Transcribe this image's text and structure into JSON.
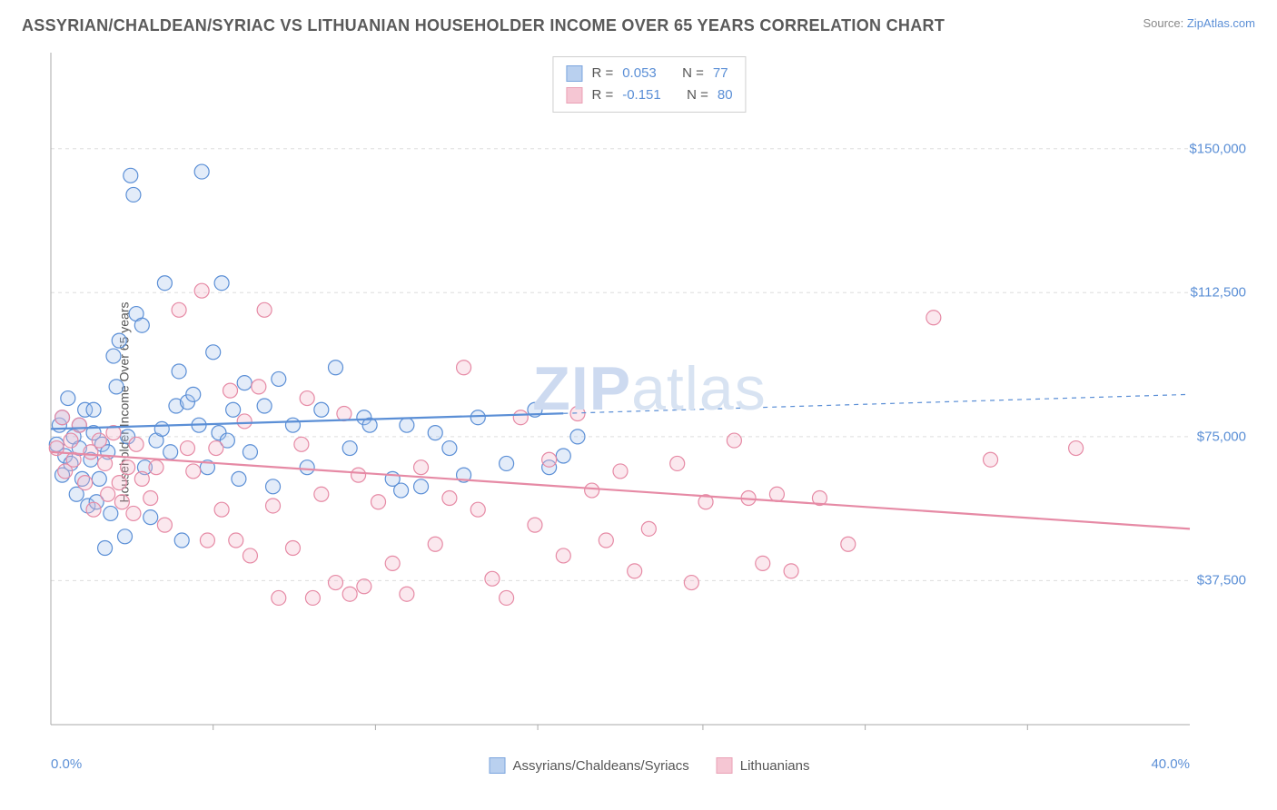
{
  "title": "ASSYRIAN/CHALDEAN/SYRIAC VS LITHUANIAN HOUSEHOLDER INCOME OVER 65 YEARS CORRELATION CHART",
  "source_prefix": "Source: ",
  "source_link": "ZipAtlas.com",
  "ylabel": "Householder Income Over 65 years",
  "watermark_a": "ZIP",
  "watermark_b": "atlas",
  "chart": {
    "type": "scatter",
    "background_color": "#ffffff",
    "grid_color": "#dddddd",
    "axis_color": "#aaaaaa",
    "text_color": "#555555",
    "tick_color": "#5b8fd6",
    "title_fontsize": 18,
    "label_fontsize": 14,
    "tick_fontsize": 15,
    "xlim": [
      0,
      40
    ],
    "ylim": [
      0,
      175000
    ],
    "y_ticks": [
      37500,
      75000,
      112500,
      150000
    ],
    "y_tick_labels": [
      "$37,500",
      "$75,000",
      "$112,500",
      "$150,000"
    ],
    "x_ticks": [
      0,
      40
    ],
    "x_tick_labels": [
      "0.0%",
      "40.0%"
    ],
    "x_minor_ticks": [
      5.7,
      11.4,
      17.1,
      22.9,
      28.6,
      34.3
    ],
    "marker_radius": 8,
    "marker_fill_opacity": 0.32,
    "marker_stroke_width": 1.2,
    "line_width": 2.2,
    "series": [
      {
        "name": "Assyrians/Chaldeans/Syriacs",
        "color_stroke": "#5b8fd6",
        "color_fill": "#a8c5ec",
        "R": "0.053",
        "N": "77",
        "trend": {
          "y_at_xmin": 77000,
          "y_at_xmax": 86000,
          "solid_until_x": 18
        },
        "points": [
          [
            0.2,
            73000
          ],
          [
            0.3,
            78000
          ],
          [
            0.4,
            65000
          ],
          [
            0.4,
            80000
          ],
          [
            0.5,
            70000
          ],
          [
            0.6,
            85000
          ],
          [
            0.7,
            68000
          ],
          [
            0.8,
            75000
          ],
          [
            0.9,
            60000
          ],
          [
            1.0,
            78000
          ],
          [
            1.0,
            72000
          ],
          [
            1.1,
            64000
          ],
          [
            1.2,
            82000
          ],
          [
            1.3,
            57000
          ],
          [
            1.4,
            69000
          ],
          [
            1.5,
            76000
          ],
          [
            1.5,
            82000
          ],
          [
            1.6,
            58000
          ],
          [
            1.7,
            64000
          ],
          [
            1.8,
            73000
          ],
          [
            1.9,
            46000
          ],
          [
            2.0,
            71000
          ],
          [
            2.1,
            55000
          ],
          [
            2.2,
            96000
          ],
          [
            2.3,
            88000
          ],
          [
            2.4,
            100000
          ],
          [
            2.6,
            49000
          ],
          [
            2.7,
            75000
          ],
          [
            2.8,
            143000
          ],
          [
            2.9,
            138000
          ],
          [
            3.0,
            107000
          ],
          [
            3.2,
            104000
          ],
          [
            3.3,
            67000
          ],
          [
            3.5,
            54000
          ],
          [
            3.7,
            74000
          ],
          [
            3.9,
            77000
          ],
          [
            4.0,
            115000
          ],
          [
            4.2,
            71000
          ],
          [
            4.4,
            83000
          ],
          [
            4.5,
            92000
          ],
          [
            4.6,
            48000
          ],
          [
            4.8,
            84000
          ],
          [
            5.0,
            86000
          ],
          [
            5.2,
            78000
          ],
          [
            5.3,
            144000
          ],
          [
            5.5,
            67000
          ],
          [
            5.7,
            97000
          ],
          [
            5.9,
            76000
          ],
          [
            6.0,
            115000
          ],
          [
            6.2,
            74000
          ],
          [
            6.4,
            82000
          ],
          [
            6.6,
            64000
          ],
          [
            6.8,
            89000
          ],
          [
            7.0,
            71000
          ],
          [
            7.5,
            83000
          ],
          [
            7.8,
            62000
          ],
          [
            8.0,
            90000
          ],
          [
            8.5,
            78000
          ],
          [
            9.0,
            67000
          ],
          [
            9.5,
            82000
          ],
          [
            10.0,
            93000
          ],
          [
            10.5,
            72000
          ],
          [
            11.0,
            80000
          ],
          [
            11.2,
            78000
          ],
          [
            12.0,
            64000
          ],
          [
            12.3,
            61000
          ],
          [
            12.5,
            78000
          ],
          [
            13.0,
            62000
          ],
          [
            13.5,
            76000
          ],
          [
            14.0,
            72000
          ],
          [
            14.5,
            65000
          ],
          [
            15.0,
            80000
          ],
          [
            16.0,
            68000
          ],
          [
            17.0,
            82000
          ],
          [
            17.5,
            67000
          ],
          [
            18.0,
            70000
          ],
          [
            18.5,
            75000
          ]
        ]
      },
      {
        "name": "Lithuanians",
        "color_stroke": "#e68aa5",
        "color_fill": "#f3b8c9",
        "R": "-0.151",
        "N": "80",
        "trend": {
          "y_at_xmin": 71000,
          "y_at_xmax": 51000,
          "solid_until_x": 40
        },
        "points": [
          [
            0.2,
            72000
          ],
          [
            0.4,
            80000
          ],
          [
            0.5,
            66000
          ],
          [
            0.7,
            74000
          ],
          [
            0.8,
            69000
          ],
          [
            1.0,
            78000
          ],
          [
            1.2,
            63000
          ],
          [
            1.4,
            71000
          ],
          [
            1.5,
            56000
          ],
          [
            1.7,
            74000
          ],
          [
            1.9,
            68000
          ],
          [
            2.0,
            60000
          ],
          [
            2.2,
            76000
          ],
          [
            2.4,
            63000
          ],
          [
            2.5,
            58000
          ],
          [
            2.7,
            67000
          ],
          [
            2.9,
            55000
          ],
          [
            3.0,
            73000
          ],
          [
            3.2,
            64000
          ],
          [
            3.5,
            59000
          ],
          [
            3.7,
            67000
          ],
          [
            4.0,
            52000
          ],
          [
            4.5,
            108000
          ],
          [
            4.8,
            72000
          ],
          [
            5.0,
            66000
          ],
          [
            5.3,
            113000
          ],
          [
            5.5,
            48000
          ],
          [
            5.8,
            72000
          ],
          [
            6.0,
            56000
          ],
          [
            6.3,
            87000
          ],
          [
            6.5,
            48000
          ],
          [
            6.8,
            79000
          ],
          [
            7.0,
            44000
          ],
          [
            7.3,
            88000
          ],
          [
            7.5,
            108000
          ],
          [
            7.8,
            57000
          ],
          [
            8.0,
            33000
          ],
          [
            8.5,
            46000
          ],
          [
            8.8,
            73000
          ],
          [
            9.0,
            85000
          ],
          [
            9.2,
            33000
          ],
          [
            9.5,
            60000
          ],
          [
            10.0,
            37000
          ],
          [
            10.3,
            81000
          ],
          [
            10.5,
            34000
          ],
          [
            10.8,
            65000
          ],
          [
            11.0,
            36000
          ],
          [
            11.5,
            58000
          ],
          [
            12.0,
            42000
          ],
          [
            12.5,
            34000
          ],
          [
            13.0,
            67000
          ],
          [
            13.5,
            47000
          ],
          [
            14.0,
            59000
          ],
          [
            14.5,
            93000
          ],
          [
            15.0,
            56000
          ],
          [
            15.5,
            38000
          ],
          [
            16.0,
            33000
          ],
          [
            16.5,
            80000
          ],
          [
            17.0,
            52000
          ],
          [
            17.5,
            69000
          ],
          [
            18.0,
            44000
          ],
          [
            18.5,
            81000
          ],
          [
            19.0,
            61000
          ],
          [
            19.5,
            48000
          ],
          [
            20.0,
            66000
          ],
          [
            20.5,
            40000
          ],
          [
            21.0,
            51000
          ],
          [
            22.0,
            68000
          ],
          [
            22.5,
            37000
          ],
          [
            23.0,
            58000
          ],
          [
            24.0,
            74000
          ],
          [
            24.5,
            59000
          ],
          [
            25.0,
            42000
          ],
          [
            25.5,
            60000
          ],
          [
            26.0,
            40000
          ],
          [
            27.0,
            59000
          ],
          [
            28.0,
            47000
          ],
          [
            31.0,
            106000
          ],
          [
            33.0,
            69000
          ],
          [
            36.0,
            72000
          ]
        ]
      }
    ],
    "legend_top": {
      "R_label": "R =",
      "N_label": "N ="
    },
    "legend_bottom_pos": "bottom-center"
  }
}
